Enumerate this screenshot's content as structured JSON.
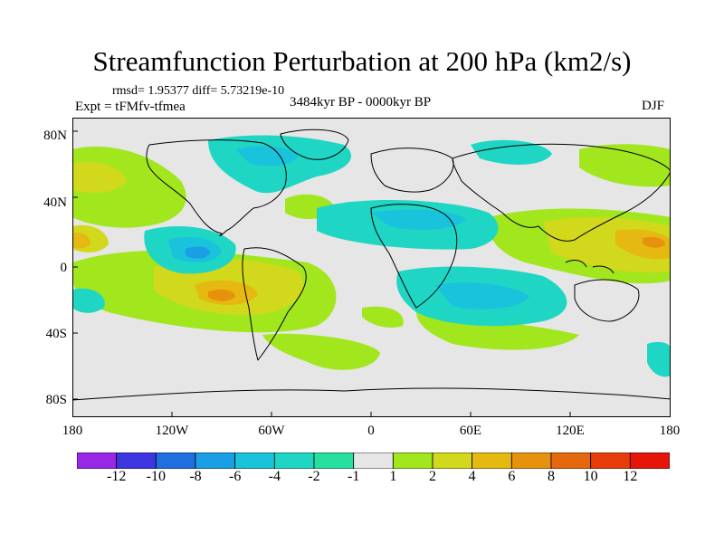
{
  "title": "Streamfunction Perturbation at 200 hPa (km2/s)",
  "stats": "rmsd= 1.95377 diff= 5.73219e-10",
  "experiment": "Expt = tFMfv-tfmea",
  "period": "3484kyr BP - 0000kyr BP",
  "season": "DJF",
  "lat_labels": [
    "80N",
    "40N",
    "0",
    "40S",
    "80S"
  ],
  "lon_labels": [
    "180",
    "120W",
    "60W",
    "0",
    "60E",
    "120E",
    "180"
  ],
  "colorbar": {
    "labels": [
      "-12",
      "-10",
      "-8",
      "-6",
      "-4",
      "-2",
      "-1",
      "1",
      "2",
      "4",
      "6",
      "8",
      "10",
      "12"
    ],
    "colors": [
      "#9b27e6",
      "#3c35e0",
      "#1f6fe0",
      "#1a9fe6",
      "#19c3dc",
      "#1fd6c4",
      "#27e0a0",
      "#e6e6e6",
      "#a2e61e",
      "#d2d81c",
      "#e6b812",
      "#e6920e",
      "#e6680c",
      "#e63c0a",
      "#e6150a"
    ]
  },
  "map_fields": {
    "background": "#e6e6e6",
    "coast_color": "#000000"
  }
}
